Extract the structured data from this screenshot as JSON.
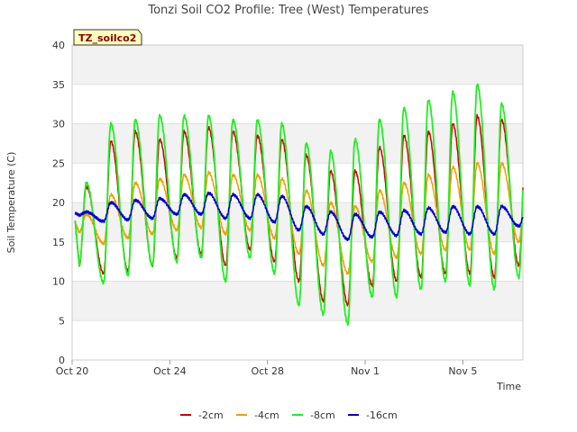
{
  "chart_data": {
    "type": "line",
    "title": "Tonzi Soil CO2 Profile: Tree (West) Temperatures",
    "xlabel": "Time",
    "ylabel": "Soil Temperature (C)",
    "badge": "TZ_soilco2",
    "ylim": [
      0,
      40
    ],
    "yticks": [
      0,
      5,
      10,
      15,
      20,
      25,
      30,
      35,
      40
    ],
    "xlim": [
      "Oct 20",
      "Nov 7 11:00"
    ],
    "xticks": [
      "Oct 20",
      "Oct 24",
      "Oct 28",
      "Nov 1",
      "Nov 5"
    ],
    "grid": true,
    "legend_position": "bottom",
    "x_note": "daily temperature extremes per series; minimum occurs ~07:00, maximum ~14:00 each day",
    "days": [
      "Oct 20",
      "Oct 21",
      "Oct 22",
      "Oct 23",
      "Oct 24",
      "Oct 25",
      "Oct 26",
      "Oct 27",
      "Oct 28",
      "Oct 29",
      "Oct 30",
      "Oct 31",
      "Nov 1",
      "Nov 2",
      "Nov 3",
      "Nov 4",
      "Nov 5",
      "Nov 6",
      "Nov 7"
    ],
    "series": [
      {
        "name": "-2cm",
        "color": "#cc0000",
        "daily_min": [
          12.0,
          11.0,
          11.3,
          12.0,
          13.0,
          13.5,
          12.0,
          14.0,
          12.5,
          10.0,
          7.5,
          7.0,
          9.5,
          10.0,
          10.5,
          11.0,
          11.0,
          10.5,
          12.0
        ],
        "daily_max": [
          22.0,
          27.8,
          29.0,
          28.0,
          29.0,
          29.5,
          29.0,
          28.5,
          28.0,
          26.0,
          24.0,
          24.0,
          27.0,
          28.5,
          29.0,
          30.0,
          31.0,
          30.5,
          28.0
        ]
      },
      {
        "name": "-4cm",
        "color": "#f0a000",
        "daily_min": [
          16.2,
          14.8,
          15.5,
          16.0,
          16.5,
          16.8,
          16.0,
          16.5,
          15.5,
          13.5,
          12.0,
          11.0,
          12.5,
          13.0,
          13.5,
          14.0,
          14.0,
          13.5,
          15.0
        ],
        "daily_max": [
          18.5,
          21.0,
          22.5,
          23.0,
          23.5,
          23.8,
          23.5,
          23.5,
          23.0,
          21.5,
          20.0,
          19.5,
          21.5,
          22.5,
          23.5,
          24.5,
          25.0,
          25.0,
          23.0
        ]
      },
      {
        "name": "-8cm",
        "color": "#22ee22",
        "daily_min": [
          12.0,
          9.8,
          10.8,
          12.0,
          12.5,
          13.0,
          10.0,
          13.0,
          11.0,
          7.0,
          5.8,
          4.6,
          8.0,
          8.0,
          9.0,
          10.0,
          9.5,
          9.0,
          10.5
        ],
        "daily_max": [
          22.5,
          30.0,
          30.5,
          31.0,
          31.0,
          31.0,
          30.5,
          30.5,
          30.0,
          27.5,
          26.5,
          28.0,
          30.5,
          32.0,
          33.0,
          34.0,
          35.0,
          32.5,
          29.0
        ]
      },
      {
        "name": "-16cm",
        "color": "#0000cc",
        "daily_min": [
          18.4,
          17.6,
          17.8,
          18.0,
          18.5,
          18.5,
          18.0,
          18.0,
          17.5,
          16.5,
          16.0,
          15.3,
          15.6,
          15.8,
          16.0,
          16.2,
          16.0,
          16.0,
          17.0
        ],
        "daily_max": [
          18.8,
          20.0,
          20.3,
          20.5,
          21.0,
          21.2,
          21.0,
          21.0,
          20.8,
          19.5,
          18.8,
          18.5,
          18.8,
          19.0,
          19.3,
          19.5,
          19.5,
          19.5,
          19.0
        ]
      }
    ]
  }
}
